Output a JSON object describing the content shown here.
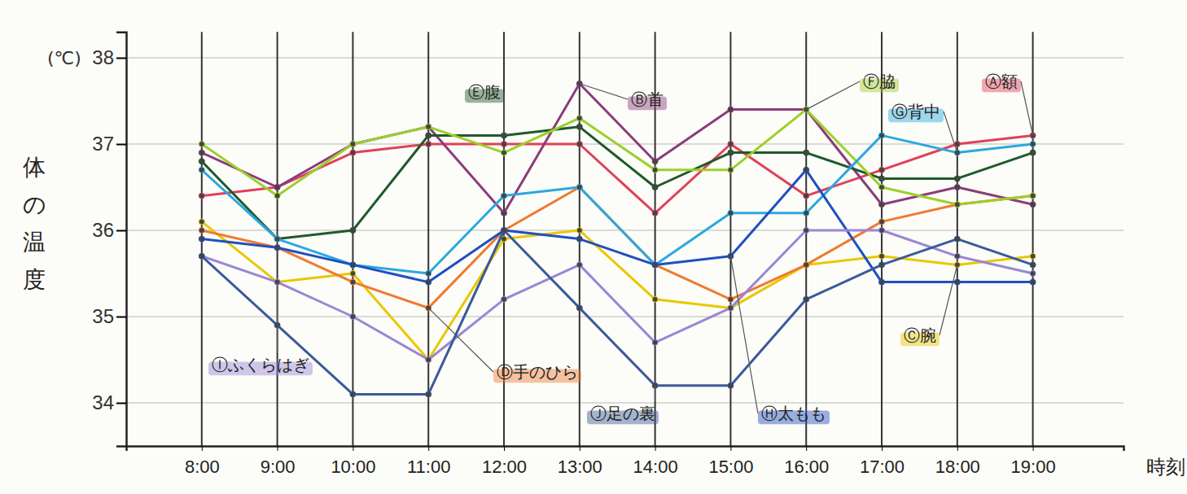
{
  "chart_data": {
    "type": "line",
    "x_label": "時刻",
    "y_label": "体の温度",
    "annotations": [
      "(℃)"
    ],
    "categories": [
      "8:00",
      "9:00",
      "10:00",
      "11:00",
      "12:00",
      "13:00",
      "14:00",
      "15:00",
      "16:00",
      "17:00",
      "18:00",
      "19:00"
    ],
    "ylim": [
      33.5,
      38.3
    ],
    "yticks": [
      34,
      35,
      36,
      37,
      38
    ],
    "grid": true,
    "marker": "circle",
    "series": [
      {
        "name": "Ⓐ額",
        "color": "#e0405a",
        "values": [
          36.4,
          36.5,
          36.9,
          37.0,
          37.0,
          37.0,
          36.2,
          37.0,
          36.4,
          36.7,
          37.0,
          37.1
        ]
      },
      {
        "name": "Ⓑ首",
        "color": "#8a3d7a",
        "values": [
          36.9,
          36.5,
          37.0,
          37.2,
          36.2,
          37.7,
          36.8,
          37.4,
          37.4,
          36.3,
          36.5,
          36.3
        ]
      },
      {
        "name": "Ⓒ腕",
        "color": "#e8c800",
        "values": [
          36.1,
          35.4,
          35.5,
          34.5,
          35.9,
          36.0,
          35.2,
          35.1,
          35.6,
          35.7,
          35.6,
          35.7
        ]
      },
      {
        "name": "Ⓓ手のひら",
        "color": "#f07a30",
        "values": [
          36.0,
          35.8,
          35.4,
          35.1,
          36.0,
          36.5,
          35.6,
          35.2,
          35.6,
          36.1,
          36.3,
          36.4
        ]
      },
      {
        "name": "Ⓔ腹",
        "color": "#1f5a2a",
        "values": [
          36.8,
          35.9,
          36.0,
          37.1,
          37.1,
          37.2,
          36.5,
          36.9,
          36.9,
          36.6,
          36.6,
          36.9
        ]
      },
      {
        "name": "Ⓕ脇",
        "color": "#9ccf2a",
        "values": [
          37.0,
          36.4,
          37.0,
          37.2,
          36.9,
          37.3,
          36.7,
          36.7,
          37.4,
          36.5,
          36.3,
          36.4
        ]
      },
      {
        "name": "Ⓖ背中",
        "color": "#2aa8e0",
        "values": [
          36.7,
          35.9,
          35.6,
          35.5,
          36.4,
          36.5,
          35.6,
          36.2,
          36.2,
          37.1,
          36.9,
          37.0
        ]
      },
      {
        "name": "Ⓗ太もも",
        "color": "#1f4fc0",
        "values": [
          35.9,
          35.8,
          35.6,
          35.4,
          36.0,
          35.9,
          35.6,
          35.7,
          36.7,
          35.4,
          35.4,
          35.4
        ]
      },
      {
        "name": "Ⓘふくらはぎ",
        "color": "#9a86d6",
        "values": [
          35.7,
          35.4,
          35.0,
          34.5,
          35.2,
          35.6,
          34.7,
          35.1,
          36.0,
          36.0,
          35.7,
          35.5
        ]
      },
      {
        "name": "Ⓙ足の裏",
        "color": "#3a5a9a",
        "values": [
          35.7,
          34.9,
          34.1,
          34.1,
          36.0,
          35.1,
          34.2,
          34.2,
          35.2,
          35.6,
          35.9,
          35.6
        ]
      }
    ]
  }
}
